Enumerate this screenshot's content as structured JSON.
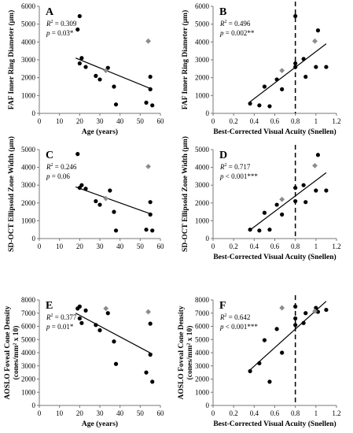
{
  "colors": {
    "point": "#000000",
    "highlight": "#8c8c8c",
    "axis": "#777777",
    "text": "#000000"
  },
  "chart_data": [
    {
      "id": "A",
      "type": "scatter",
      "letter": "A",
      "xlabel": "Age (years)",
      "ylabel": "FAF Inner Ring Diameter (µm)",
      "xlim": [
        0,
        60
      ],
      "ylim": [
        0,
        6000
      ],
      "xticks": [
        0,
        10,
        20,
        30,
        40,
        50,
        60
      ],
      "yticks": [
        0,
        1000,
        2000,
        3000,
        4000,
        5000,
        6000
      ],
      "xtick_labels": [
        "0",
        "10",
        "20",
        "30",
        "40",
        "50",
        "60"
      ],
      "ytick_labels": [
        "0",
        "1000",
        "2000",
        "3000",
        "4000",
        "5000",
        "6000"
      ],
      "r2_label": "R² = 0.309",
      "p_label": "p = 0.03*",
      "points": [
        [
          19,
          4700
        ],
        [
          20,
          5450
        ],
        [
          21,
          3100
        ],
        [
          20,
          2800
        ],
        [
          23,
          2600
        ],
        [
          28,
          2100
        ],
        [
          30,
          1900
        ],
        [
          34,
          2550
        ],
        [
          37,
          1500
        ],
        [
          38,
          500
        ],
        [
          53,
          600
        ],
        [
          55,
          2050
        ],
        [
          55,
          1350
        ],
        [
          56,
          450
        ]
      ],
      "highlight_points": [
        [
          33,
          2400
        ],
        [
          54,
          4050
        ]
      ],
      "fit": [
        [
          18,
          3100
        ],
        [
          56,
          1350
        ]
      ],
      "vline": null
    },
    {
      "id": "B",
      "type": "scatter",
      "letter": "B",
      "xlabel": "Best-Corrected Visual Acuity (Snellen)",
      "ylabel": "FAF Inner Ring Diameter (µm)",
      "xlim": [
        0,
        1.2
      ],
      "ylim": [
        0,
        6000
      ],
      "xticks": [
        0,
        0.2,
        0.4,
        0.6,
        0.8,
        1,
        1.2
      ],
      "yticks": [
        0,
        1000,
        2000,
        3000,
        4000,
        5000,
        6000
      ],
      "xtick_labels": [
        "0",
        "0.2",
        "0.4",
        "0.6",
        "0.8",
        "1",
        "1.2"
      ],
      "ytick_labels": [
        "0",
        "1000",
        "2000",
        "3000",
        "4000",
        "5000",
        "6000"
      ],
      "r2_label": "R² = 0.496",
      "p_label": "p = 0.002**",
      "points": [
        [
          0.36,
          550
        ],
        [
          0.45,
          450
        ],
        [
          0.5,
          1500
        ],
        [
          0.55,
          400
        ],
        [
          0.62,
          1900
        ],
        [
          0.67,
          1350
        ],
        [
          0.8,
          5450
        ],
        [
          0.8,
          2800
        ],
        [
          0.8,
          2600
        ],
        [
          0.88,
          3050
        ],
        [
          0.9,
          2050
        ],
        [
          1.0,
          2600
        ],
        [
          1.02,
          4650
        ],
        [
          1.1,
          2600
        ]
      ],
      "highlight_points": [
        [
          0.67,
          2400
        ],
        [
          0.99,
          4050
        ]
      ],
      "fit": [
        [
          0.36,
          650
        ],
        [
          1.1,
          3900
        ]
      ],
      "vline": 0.8
    },
    {
      "id": "C",
      "type": "scatter",
      "letter": "C",
      "xlabel": "",
      "ylabel": "SD-OCT Ellipsoid Zone Width (µm)",
      "xlim": [
        0,
        60
      ],
      "ylim": [
        0,
        5000
      ],
      "xticks": [
        0,
        10,
        20,
        30,
        40,
        50,
        60
      ],
      "yticks": [
        0,
        1000,
        2000,
        3000,
        4000,
        5000
      ],
      "xtick_labels": [
        "0",
        "10",
        "20",
        "30",
        "40",
        "50",
        "60"
      ],
      "ytick_labels": [
        "0",
        "1000",
        "2000",
        "3000",
        "4000",
        "5000"
      ],
      "r2_label": "R² = 0.246",
      "p_label": "p = 0.06",
      "points": [
        [
          19,
          4750
        ],
        [
          20,
          2850
        ],
        [
          21,
          3000
        ],
        [
          23,
          2800
        ],
        [
          28,
          2100
        ],
        [
          30,
          1900
        ],
        [
          35,
          2700
        ],
        [
          37,
          1500
        ],
        [
          38,
          450
        ],
        [
          53,
          500
        ],
        [
          55,
          2050
        ],
        [
          55,
          1350
        ],
        [
          56,
          450
        ]
      ],
      "highlight_points": [
        [
          33,
          2250
        ],
        [
          54,
          4050
        ]
      ],
      "fit": [
        [
          18,
          2900
        ],
        [
          56,
          1350
        ]
      ],
      "vline": null
    },
    {
      "id": "D",
      "type": "scatter",
      "letter": "D",
      "xlabel": "Best-Corrected Visual Acuity (Snellen)",
      "ylabel": "SD-OCT Ellipsoid Zone Width (µm)",
      "xlim": [
        0,
        1.2
      ],
      "ylim": [
        0,
        5000
      ],
      "xticks": [
        0,
        0.2,
        0.4,
        0.6,
        0.8,
        1,
        1.2
      ],
      "yticks": [
        0,
        1000,
        2000,
        3000,
        4000,
        5000
      ],
      "xtick_labels": [
        "0",
        "0.2",
        "0.4",
        "0.6",
        "0.8",
        "1",
        "1.2"
      ],
      "ytick_labels": [
        "0",
        "1000",
        "2000",
        "3000",
        "4000",
        "5000"
      ],
      "r2_label": "R² = 0.717",
      "p_label": "p < 0.001***",
      "points": [
        [
          0.36,
          500
        ],
        [
          0.45,
          450
        ],
        [
          0.5,
          1450
        ],
        [
          0.55,
          500
        ],
        [
          0.62,
          1900
        ],
        [
          0.67,
          1350
        ],
        [
          0.8,
          2850
        ],
        [
          0.8,
          2100
        ],
        [
          0.88,
          3000
        ],
        [
          0.9,
          2050
        ],
        [
          1.0,
          2700
        ],
        [
          1.02,
          4700
        ],
        [
          1.1,
          2700
        ]
      ],
      "highlight_points": [
        [
          0.67,
          2200
        ],
        [
          0.99,
          4100
        ]
      ],
      "fit": [
        [
          0.36,
          480
        ],
        [
          1.1,
          3700
        ]
      ],
      "vline": 0.8
    },
    {
      "id": "E",
      "type": "scatter",
      "letter": "E",
      "xlabel": "Age (years)",
      "ylabel": "AOSLO Foveal Cone Density (cones/mm² x 10)",
      "ylabel_lines": [
        "AOSLO Foveal Cone Density",
        "(cones/mm² x 10)"
      ],
      "xlim": [
        0,
        60
      ],
      "ylim": [
        0,
        8000
      ],
      "xticks": [
        0,
        10,
        20,
        30,
        40,
        50,
        60
      ],
      "yticks": [
        0,
        1000,
        2000,
        3000,
        4000,
        5000,
        6000,
        7000,
        8000
      ],
      "xtick_labels": [
        "0",
        "10",
        "20",
        "30",
        "40",
        "50",
        "60"
      ],
      "ytick_labels": [
        "0",
        "1000",
        "2000",
        "3000",
        "4000",
        "5000",
        "6000",
        "7000",
        "8000"
      ],
      "r2_label": "R² = 0.377",
      "p_label": "p = 0.01*",
      "points": [
        [
          19,
          7350
        ],
        [
          20,
          7500
        ],
        [
          20,
          6600
        ],
        [
          21,
          6250
        ],
        [
          23,
          7200
        ],
        [
          28,
          6100
        ],
        [
          30,
          5700
        ],
        [
          34,
          7000
        ],
        [
          37,
          4850
        ],
        [
          38,
          3150
        ],
        [
          53,
          2500
        ],
        [
          55,
          6200
        ],
        [
          55,
          3850
        ],
        [
          56,
          1800
        ]
      ],
      "highlight_points": [
        [
          33,
          7350
        ],
        [
          54,
          7100
        ]
      ],
      "fit": [
        [
          18,
          7000
        ],
        [
          56,
          3900
        ]
      ],
      "vline": null
    },
    {
      "id": "F",
      "type": "scatter",
      "letter": "F",
      "xlabel": "Best-Corrected Visual Acuity (Snellen)",
      "ylabel": "AOSLO Foveal Cone Density (cones/mm² x 10)",
      "ylabel_lines": [
        "AOSLO Foveal Cone Density",
        "(cones/mm² x 10)"
      ],
      "xlim": [
        0,
        1.2
      ],
      "ylim": [
        0,
        8000
      ],
      "xticks": [
        0,
        0.2,
        0.4,
        0.6,
        0.8,
        1,
        1.2
      ],
      "yticks": [
        0,
        1000,
        2000,
        3000,
        4000,
        5000,
        6000,
        7000,
        8000
      ],
      "xtick_labels": [
        "0",
        "0.2",
        "0.4",
        "0.6",
        "0.8",
        "1",
        "1.2"
      ],
      "ytick_labels": [
        "0",
        "1000",
        "2000",
        "3000",
        "4000",
        "5000",
        "6000",
        "7000",
        "8000"
      ],
      "r2_label": "R² = 0.642",
      "p_label": "p < 0.001***",
      "points": [
        [
          0.36,
          2600
        ],
        [
          0.45,
          3200
        ],
        [
          0.5,
          4950
        ],
        [
          0.55,
          1800
        ],
        [
          0.62,
          5800
        ],
        [
          0.67,
          4000
        ],
        [
          0.8,
          7500
        ],
        [
          0.8,
          6600
        ],
        [
          0.8,
          6100
        ],
        [
          0.88,
          6250
        ],
        [
          0.9,
          7000
        ],
        [
          1.0,
          7400
        ],
        [
          1.02,
          7100
        ],
        [
          1.1,
          7250
        ]
      ],
      "highlight_points": [
        [
          0.67,
          7400
        ],
        [
          0.99,
          7150
        ]
      ],
      "fit": [
        [
          0.36,
          2700
        ],
        [
          1.1,
          7900
        ]
      ],
      "vline": 0.8
    }
  ]
}
